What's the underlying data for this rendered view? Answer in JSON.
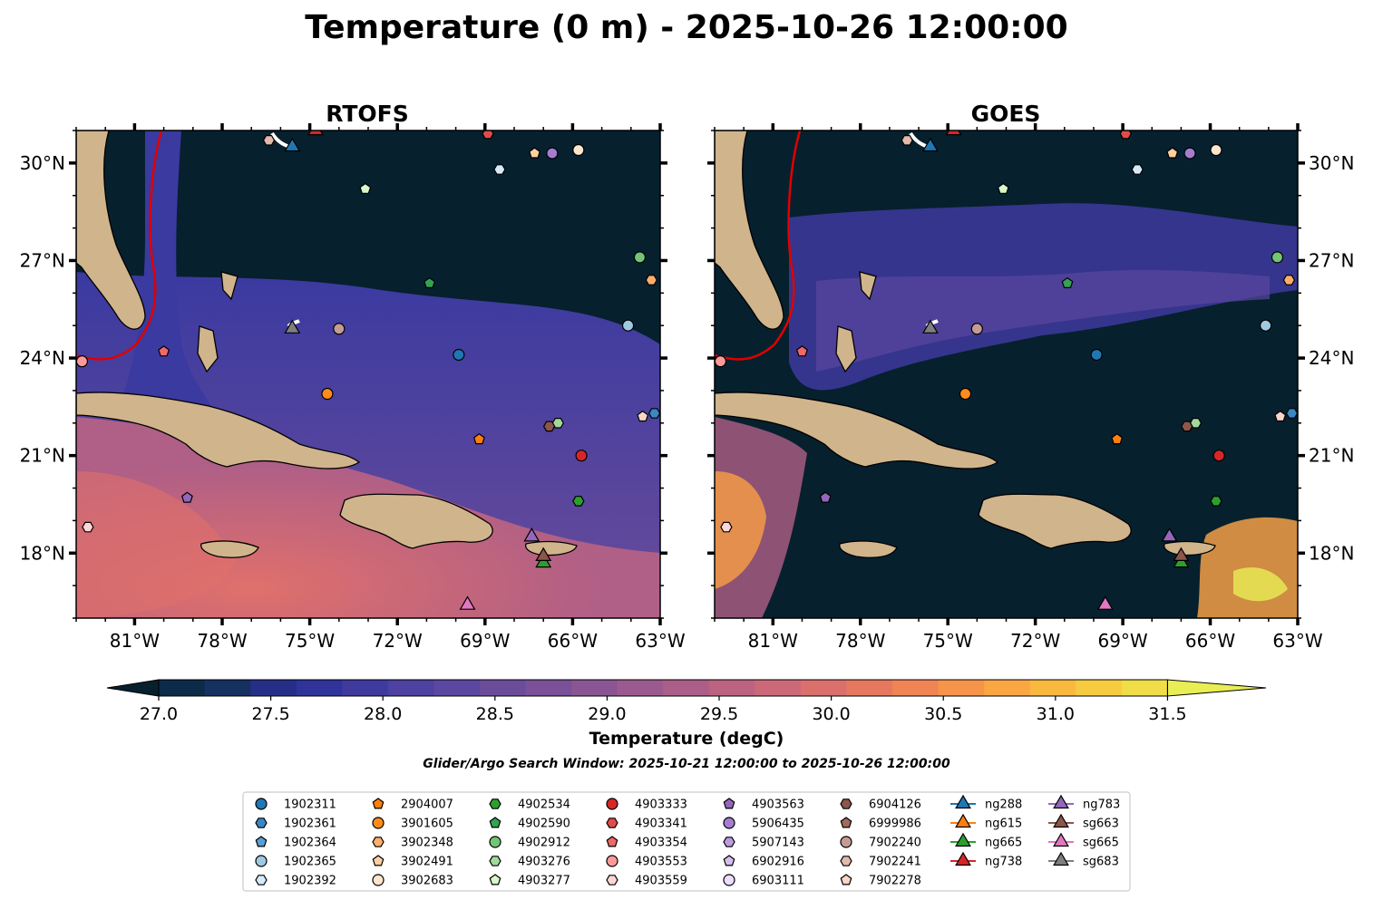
{
  "title": "Temperature (0 m) - 2025-10-26 12:00:00",
  "search_window": "Glider/Argo Search Window: 2025-10-21 12:00:00 to 2025-10-26 12:00:00",
  "chart_data": [
    {
      "type": "heatmap",
      "title": "RTOFS",
      "xlim": [
        -83.0,
        -63.0
      ],
      "ylim": [
        16.0,
        31.0
      ],
      "x_ticks": [
        -81,
        -78,
        -75,
        -72,
        -69,
        -66,
        -63
      ],
      "x_tick_labels": [
        "81°W",
        "78°W",
        "75°W",
        "72°W",
        "69°W",
        "66°W",
        "63°W"
      ],
      "y_ticks": [
        18,
        21,
        24,
        27,
        30
      ],
      "y_tick_labels": [
        "18°N",
        "21°N",
        "24°N",
        "27°N",
        "30°N"
      ],
      "y_tick_side": "left"
    },
    {
      "type": "heatmap",
      "title": "GOES",
      "xlim": [
        -83.0,
        -63.0
      ],
      "ylim": [
        16.0,
        31.0
      ],
      "x_ticks": [
        -81,
        -78,
        -75,
        -72,
        -69,
        -66,
        -63
      ],
      "x_tick_labels": [
        "81°W",
        "78°W",
        "75°W",
        "72°W",
        "69°W",
        "66°W",
        "63°W"
      ],
      "y_ticks": [
        18,
        21,
        24,
        27,
        30
      ],
      "y_tick_labels": [
        "18°N",
        "21°N",
        "24°N",
        "27°N",
        "30°N"
      ],
      "y_tick_side": "right"
    }
  ],
  "colorbar": {
    "label": "Temperature (degC)",
    "min": 26.75,
    "max": 31.75,
    "step": 0.25,
    "ticks": [
      27.0,
      27.5,
      28.0,
      28.5,
      29.0,
      29.5,
      30.0,
      30.5,
      31.0,
      31.5
    ],
    "tick_labels": [
      "27.0",
      "27.5",
      "28.0",
      "28.5",
      "29.0",
      "29.5",
      "30.0",
      "30.5",
      "31.0",
      "31.5"
    ],
    "colors": [
      "#06202e",
      "#0d2a49",
      "#16305f",
      "#262f88",
      "#2f339a",
      "#3e3a9e",
      "#4d41a2",
      "#5b479f",
      "#6a4c9b",
      "#7a5098",
      "#8a5593",
      "#9b5a8f",
      "#ab5e88",
      "#bc6381",
      "#cc6978",
      "#da6f6c",
      "#e7785e",
      "#f08453",
      "#f6944a",
      "#f9a643",
      "#f9b93f",
      "#f6cb40",
      "#f0dd48",
      "#e9ee55"
    ]
  },
  "land_color": "#d0b48c",
  "ocean_dark": "#06202e",
  "legend": [
    {
      "label": "1902311",
      "marker": "circle",
      "color": "#1f77b4"
    },
    {
      "label": "1902361",
      "marker": "hexagon",
      "color": "#3a87c4"
    },
    {
      "label": "1902364",
      "marker": "pentagon",
      "color": "#5a9fd4"
    },
    {
      "label": "1902365",
      "marker": "circle",
      "color": "#9ecae1"
    },
    {
      "label": "1902392",
      "marker": "hexagon",
      "color": "#d6e9f8"
    },
    {
      "label": "2904007",
      "marker": "pentagon",
      "color": "#ff7f0e"
    },
    {
      "label": "3901605",
      "marker": "circle",
      "color": "#ff8c1a"
    },
    {
      "label": "3902348",
      "marker": "hexagon",
      "color": "#fdae6b"
    },
    {
      "label": "3902491",
      "marker": "pentagon",
      "color": "#fdd0a2"
    },
    {
      "label": "3902683",
      "marker": "circle",
      "color": "#fee6ce"
    },
    {
      "label": "4902534",
      "marker": "hexagon",
      "color": "#2ca02c"
    },
    {
      "label": "4902590",
      "marker": "pentagon",
      "color": "#31a354"
    },
    {
      "label": "4902912",
      "marker": "circle",
      "color": "#74c476"
    },
    {
      "label": "4903276",
      "marker": "hexagon",
      "color": "#a1d99b"
    },
    {
      "label": "4903277",
      "marker": "pentagon",
      "color": "#d9f7c9"
    },
    {
      "label": "4903333",
      "marker": "circle",
      "color": "#d62728"
    },
    {
      "label": "4903341",
      "marker": "hexagon",
      "color": "#e34a4a"
    },
    {
      "label": "4903354",
      "marker": "pentagon",
      "color": "#f06868"
    },
    {
      "label": "4903553",
      "marker": "circle",
      "color": "#fc9a9a"
    },
    {
      "label": "4903559",
      "marker": "hexagon",
      "color": "#fdd5d5"
    },
    {
      "label": "4903563",
      "marker": "pentagon",
      "color": "#9467bd"
    },
    {
      "label": "5906435",
      "marker": "circle",
      "color": "#a47cd0"
    },
    {
      "label": "5907143",
      "marker": "hexagon",
      "color": "#bc9be0"
    },
    {
      "label": "6902916",
      "marker": "pentagon",
      "color": "#d4bdf0"
    },
    {
      "label": "6903111",
      "marker": "circle",
      "color": "#ecdcfd"
    },
    {
      "label": "6904126",
      "marker": "hexagon",
      "color": "#8c564b"
    },
    {
      "label": "6999986",
      "marker": "pentagon",
      "color": "#a06a5c"
    },
    {
      "label": "7902240",
      "marker": "circle",
      "color": "#c49c94"
    },
    {
      "label": "7902241",
      "marker": "hexagon",
      "color": "#e3b9ab"
    },
    {
      "label": "7902278",
      "marker": "pentagon",
      "color": "#f7d6c8"
    },
    {
      "label": "ng288",
      "marker": "triangle",
      "color": "#1f77b4"
    },
    {
      "label": "ng615",
      "marker": "triangle",
      "color": "#ff7f0e"
    },
    {
      "label": "ng665",
      "marker": "triangle",
      "color": "#2ca02c"
    },
    {
      "label": "ng738",
      "marker": "triangle",
      "color": "#d62728"
    },
    {
      "label": "ng783",
      "marker": "triangle",
      "color": "#9467bd"
    },
    {
      "label": "sg663",
      "marker": "triangle",
      "color": "#8c564b"
    },
    {
      "label": "sg665",
      "marker": "triangle",
      "color": "#e377c2"
    },
    {
      "label": "sg683",
      "marker": "triangle",
      "color": "#7f7f7f"
    }
  ],
  "observations": [
    {
      "id": "1902311",
      "lon": -69.9,
      "lat": 24.1
    },
    {
      "id": "1902361",
      "lon": -63.2,
      "lat": 22.3
    },
    {
      "id": "1902365",
      "lon": -64.1,
      "lat": 25.0
    },
    {
      "id": "1902392",
      "lon": -68.5,
      "lat": 29.8
    },
    {
      "id": "2904007",
      "lon": -69.2,
      "lat": 21.5
    },
    {
      "id": "3901605",
      "lon": -74.4,
      "lat": 22.9
    },
    {
      "id": "3902348",
      "lon": -63.3,
      "lat": 26.4
    },
    {
      "id": "3902491",
      "lon": -67.3,
      "lat": 30.3
    },
    {
      "id": "3902683",
      "lon": -65.8,
      "lat": 30.4
    },
    {
      "id": "4902534",
      "lon": -65.8,
      "lat": 19.6
    },
    {
      "id": "4902590",
      "lon": -70.9,
      "lat": 26.3
    },
    {
      "id": "4902912",
      "lon": -63.7,
      "lat": 27.1
    },
    {
      "id": "4903276",
      "lon": -66.5,
      "lat": 22.0
    },
    {
      "id": "4903277",
      "lon": -73.1,
      "lat": 29.2
    },
    {
      "id": "4903333",
      "lon": -65.7,
      "lat": 21.0
    },
    {
      "id": "4903341",
      "lon": -68.9,
      "lat": 30.9
    },
    {
      "id": "4903354",
      "lon": -80.0,
      "lat": 24.2
    },
    {
      "id": "4903553",
      "lon": -82.8,
      "lat": 23.9
    },
    {
      "id": "4903559",
      "lon": -82.6,
      "lat": 18.8
    },
    {
      "id": "4903563",
      "lon": -79.2,
      "lat": 19.7
    },
    {
      "id": "5906435",
      "lon": -66.7,
      "lat": 30.3
    },
    {
      "id": "6904126",
      "lon": -66.8,
      "lat": 21.9
    },
    {
      "id": "7902240",
      "lon": -74.0,
      "lat": 24.9
    },
    {
      "id": "7902241",
      "lon": -76.4,
      "lat": 30.7
    },
    {
      "id": "7902278",
      "lon": -63.6,
      "lat": 22.2
    },
    {
      "id": "ng288",
      "lon": -75.6,
      "lat": 30.5
    },
    {
      "id": "ng665",
      "lon": -67.0,
      "lat": 17.7
    },
    {
      "id": "ng738",
      "lon": -74.8,
      "lat": 31.0
    },
    {
      "id": "ng783",
      "lon": -67.4,
      "lat": 18.5
    },
    {
      "id": "sg663",
      "lon": -67.0,
      "lat": 17.9
    },
    {
      "id": "sg665",
      "lon": -69.6,
      "lat": 16.4
    },
    {
      "id": "sg683",
      "lon": -75.6,
      "lat": 24.9
    }
  ]
}
